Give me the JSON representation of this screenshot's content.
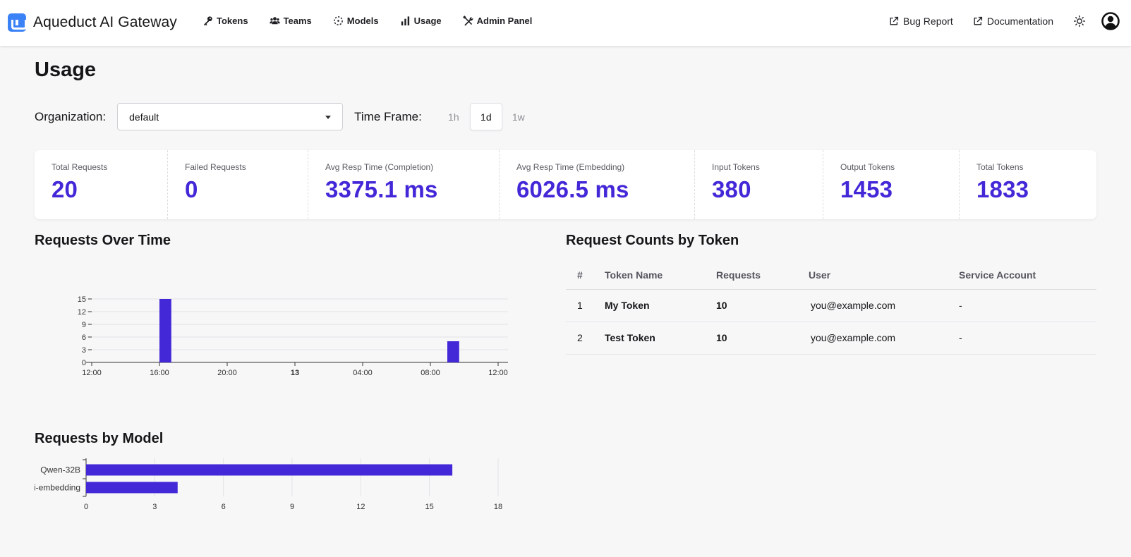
{
  "app": {
    "title": "Aqueduct AI Gateway"
  },
  "nav": {
    "items": [
      {
        "label": "Tokens",
        "icon": "key-icon"
      },
      {
        "label": "Teams",
        "icon": "users-icon"
      },
      {
        "label": "Models",
        "icon": "model-icon"
      },
      {
        "label": "Usage",
        "icon": "bar-chart-icon"
      },
      {
        "label": "Admin Panel",
        "icon": "tools-icon"
      }
    ],
    "external": [
      {
        "label": "Bug Report",
        "icon": "external-link-icon"
      },
      {
        "label": "Documentation",
        "icon": "external-link-icon"
      }
    ],
    "theme_icon": "sun-icon",
    "avatar_icon": "user-avatar-icon"
  },
  "page": {
    "title": "Usage"
  },
  "filters": {
    "organization_label": "Organization:",
    "organization_value": "default",
    "timeframe_label": "Time Frame:",
    "timeframes": [
      "1h",
      "1d",
      "1w"
    ],
    "timeframe_selected": "1d"
  },
  "stats": [
    {
      "label": "Total Requests",
      "value": "20"
    },
    {
      "label": "Failed Requests",
      "value": "0"
    },
    {
      "label": "Avg Resp Time (Completion)",
      "value": "3375.1 ms"
    },
    {
      "label": "Avg Resp Time (Embedding)",
      "value": "6026.5 ms"
    },
    {
      "label": "Input Tokens",
      "value": "380"
    },
    {
      "label": "Output Tokens",
      "value": "1453"
    },
    {
      "label": "Total Tokens",
      "value": "1833"
    }
  ],
  "sections": {
    "requests_over_time": "Requests Over Time",
    "requests_by_model": "Requests by Model",
    "request_counts_by_token": "Request Counts by Token"
  },
  "token_table": {
    "headers": [
      "#",
      "Token Name",
      "Requests",
      "User",
      "Service Account"
    ],
    "rows": [
      {
        "idx": "1",
        "name": "My Token",
        "requests": "10",
        "user": "you@example.com",
        "service_account": "-"
      },
      {
        "idx": "2",
        "name": "Test Token",
        "requests": "10",
        "user": "you@example.com",
        "service_account": "-"
      }
    ]
  },
  "colors": {
    "accent": "#4328d8",
    "brand": "#3b82f6"
  },
  "chart_data": [
    {
      "type": "bar",
      "x_tick_labels": [
        "12:00",
        "16:00",
        "20:00",
        "13",
        "04:00",
        "08:00",
        "12:00"
      ],
      "bold_tick": "13",
      "y_ticks": [
        0,
        3,
        6,
        9,
        12,
        15
      ],
      "ylim": [
        0,
        15
      ],
      "bars": [
        {
          "x_hour": 16.0,
          "value": 15
        },
        {
          "x_hour": 33.0,
          "value": 5
        }
      ],
      "x_range_hours": [
        12,
        36
      ],
      "bar_width_hours": 0.7,
      "grid": true,
      "color": "#4328d8"
    },
    {
      "type": "bar",
      "orientation": "horizontal",
      "categories": [
        "Qwen-32B",
        "i-embedding"
      ],
      "values": [
        16,
        4
      ],
      "x_ticks": [
        0,
        3,
        6,
        9,
        12,
        15,
        18
      ],
      "xlim": [
        0,
        18
      ],
      "grid": true,
      "color": "#4328d8"
    }
  ]
}
